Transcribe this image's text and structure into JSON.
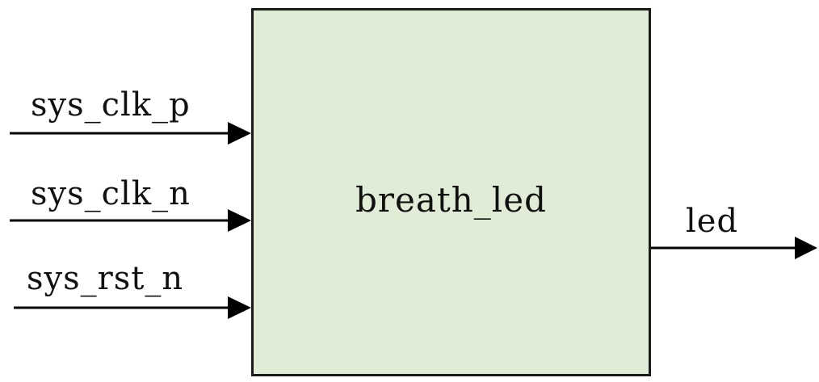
{
  "module": {
    "name": "breath_led",
    "fill": "#e1ecd6",
    "stroke": "#1a1a1a"
  },
  "inputs": [
    {
      "label": "sys_clk_p"
    },
    {
      "label": "sys_clk_n"
    },
    {
      "label": "sys_rst_n"
    }
  ],
  "outputs": [
    {
      "label": "led"
    }
  ],
  "colors": {
    "line": "#000000",
    "text": "#111111"
  }
}
